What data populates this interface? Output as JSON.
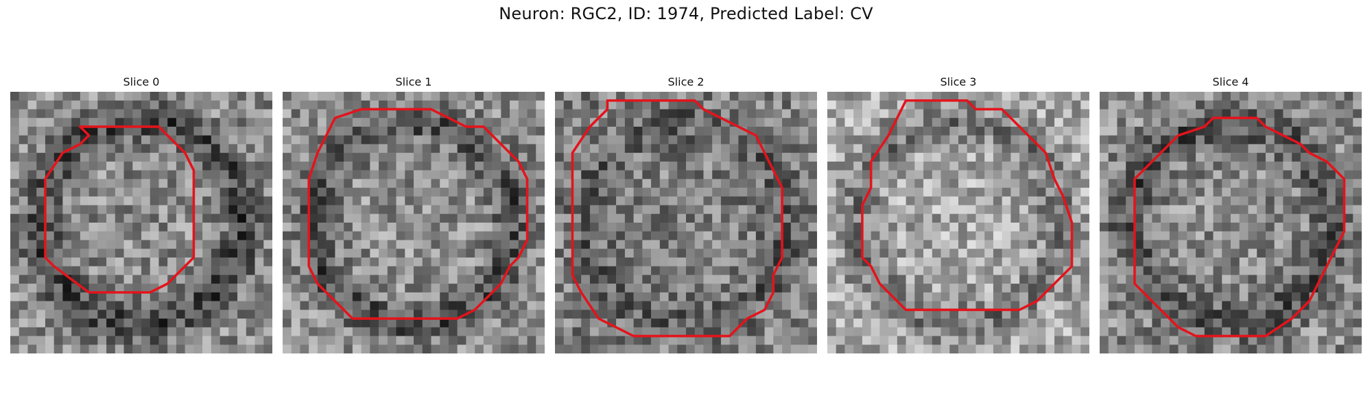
{
  "figure": {
    "title": "Neuron: RGC2, ID: 1974, Predicted Label: CV"
  },
  "outline_color": "#e3141c",
  "panels": [
    {
      "title": "Slice 0",
      "brightness": 0.55,
      "ring_darkness": 0.55,
      "contour": [
        [
          8,
          4
        ],
        [
          10,
          4
        ],
        [
          12,
          4
        ],
        [
          14,
          4
        ],
        [
          17,
          4
        ],
        [
          20,
          7
        ],
        [
          21,
          9
        ],
        [
          21,
          13
        ],
        [
          21,
          17
        ],
        [
          21,
          19
        ],
        [
          18,
          22
        ],
        [
          16,
          23
        ],
        [
          12,
          23
        ],
        [
          9,
          23
        ],
        [
          5,
          20
        ],
        [
          4,
          19
        ],
        [
          4,
          15
        ],
        [
          4,
          12
        ],
        [
          4,
          10
        ],
        [
          6,
          7
        ],
        [
          8,
          6
        ],
        [
          9,
          5
        ]
      ]
    },
    {
      "title": "Slice 1",
      "brightness": 0.56,
      "ring_darkness": 0.5,
      "contour": [
        [
          6,
          3
        ],
        [
          9,
          2
        ],
        [
          13,
          2
        ],
        [
          17,
          2
        ],
        [
          19,
          3
        ],
        [
          21,
          4
        ],
        [
          23,
          4
        ],
        [
          25,
          6
        ],
        [
          27,
          8
        ],
        [
          28,
          10
        ],
        [
          28,
          13
        ],
        [
          28,
          17
        ],
        [
          27,
          19
        ],
        [
          26,
          20
        ],
        [
          25,
          22
        ],
        [
          24,
          23
        ],
        [
          22,
          25
        ],
        [
          20,
          26
        ],
        [
          16,
          26
        ],
        [
          11,
          26
        ],
        [
          8,
          26
        ],
        [
          6,
          24
        ],
        [
          5,
          23
        ],
        [
          4,
          22
        ],
        [
          3,
          20
        ],
        [
          3,
          17
        ],
        [
          3,
          13
        ],
        [
          3,
          10
        ],
        [
          4,
          7
        ],
        [
          5,
          5
        ]
      ]
    },
    {
      "title": "Slice 2",
      "brightness": 0.5,
      "ring_darkness": 0.25,
      "contour": [
        [
          6,
          1
        ],
        [
          10,
          1
        ],
        [
          13,
          1
        ],
        [
          16,
          1
        ],
        [
          17,
          2
        ],
        [
          19,
          3
        ],
        [
          21,
          4
        ],
        [
          23,
          5
        ],
        [
          24,
          7
        ],
        [
          25,
          9
        ],
        [
          26,
          11
        ],
        [
          26,
          13
        ],
        [
          26,
          17
        ],
        [
          26,
          19
        ],
        [
          25,
          21
        ],
        [
          25,
          23
        ],
        [
          24,
          25
        ],
        [
          22,
          26
        ],
        [
          20,
          28
        ],
        [
          17,
          28
        ],
        [
          13,
          28
        ],
        [
          9,
          28
        ],
        [
          7,
          27
        ],
        [
          5,
          26
        ],
        [
          3,
          23
        ],
        [
          2,
          21
        ],
        [
          2,
          18
        ],
        [
          2,
          13
        ],
        [
          2,
          9
        ],
        [
          2,
          7
        ],
        [
          4,
          4
        ],
        [
          6,
          2
        ]
      ]
    },
    {
      "title": "Slice 3",
      "brightness": 0.66,
      "ring_darkness": 0.4,
      "contour": [
        [
          9,
          1
        ],
        [
          13,
          1
        ],
        [
          16,
          1
        ],
        [
          17,
          2
        ],
        [
          20,
          2
        ],
        [
          22,
          4
        ],
        [
          25,
          7
        ],
        [
          26,
          10
        ],
        [
          27,
          12
        ],
        [
          28,
          15
        ],
        [
          28,
          18
        ],
        [
          28,
          20
        ],
        [
          26,
          22
        ],
        [
          25,
          23
        ],
        [
          24,
          24
        ],
        [
          22,
          25
        ],
        [
          19,
          25
        ],
        [
          17,
          25
        ],
        [
          13,
          25
        ],
        [
          9,
          25
        ],
        [
          8,
          24
        ],
        [
          6,
          22
        ],
        [
          5,
          20
        ],
        [
          4,
          19
        ],
        [
          4,
          16
        ],
        [
          4,
          13
        ],
        [
          5,
          11
        ],
        [
          5,
          8
        ],
        [
          7,
          5
        ]
      ]
    },
    {
      "title": "Slice 4",
      "brightness": 0.54,
      "ring_darkness": 0.45,
      "contour": [
        [
          9,
          5
        ],
        [
          12,
          4
        ],
        [
          13,
          3
        ],
        [
          15,
          3
        ],
        [
          18,
          3
        ],
        [
          19,
          4
        ],
        [
          21,
          5
        ],
        [
          23,
          6
        ],
        [
          24,
          7
        ],
        [
          26,
          8
        ],
        [
          28,
          10
        ],
        [
          28,
          13
        ],
        [
          28,
          16
        ],
        [
          27,
          18
        ],
        [
          26,
          20
        ],
        [
          25,
          22
        ],
        [
          24,
          24
        ],
        [
          22,
          26
        ],
        [
          19,
          28
        ],
        [
          15,
          28
        ],
        [
          11,
          28
        ],
        [
          9,
          27
        ],
        [
          7,
          25
        ],
        [
          6,
          24
        ],
        [
          5,
          23
        ],
        [
          4,
          22
        ],
        [
          4,
          19
        ],
        [
          4,
          16
        ],
        [
          4,
          12
        ],
        [
          4,
          10
        ],
        [
          6,
          8
        ]
      ]
    }
  ]
}
